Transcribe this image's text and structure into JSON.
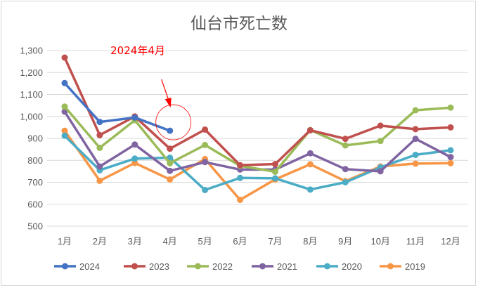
{
  "chart_data": {
    "type": "line",
    "title": "仙台市死亡数",
    "xlabel": "",
    "ylabel": "",
    "categories": [
      "1月",
      "2月",
      "3月",
      "4月",
      "5月",
      "6月",
      "7月",
      "8月",
      "9月",
      "10月",
      "11月",
      "12月"
    ],
    "ylim": [
      500,
      1300
    ],
    "yticks": [
      500,
      600,
      700,
      800,
      900,
      1000,
      1100,
      1200,
      1300
    ],
    "ytick_labels": [
      "500",
      "600",
      "700",
      "800",
      "900",
      "1,000",
      "1,100",
      "1,200",
      "1,300"
    ],
    "grid": true,
    "legend_position": "bottom",
    "series": [
      {
        "name": "2024",
        "color": "#4472c4",
        "values": [
          1152,
          975,
          995,
          935,
          null,
          null,
          null,
          null,
          null,
          null,
          null,
          null
        ]
      },
      {
        "name": "2023",
        "color": "#c0504d",
        "values": [
          1268,
          915,
          1000,
          853,
          940,
          778,
          783,
          937,
          898,
          958,
          942,
          950
        ]
      },
      {
        "name": "2022",
        "color": "#9bbb59",
        "values": [
          1045,
          857,
          983,
          787,
          870,
          775,
          748,
          938,
          868,
          888,
          1028,
          1040
        ]
      },
      {
        "name": "2021",
        "color": "#8064a2",
        "values": [
          1022,
          772,
          872,
          752,
          792,
          758,
          758,
          832,
          760,
          750,
          898,
          815
        ]
      },
      {
        "name": "2020",
        "color": "#4bacc6",
        "values": [
          912,
          755,
          808,
          812,
          665,
          720,
          718,
          667,
          700,
          768,
          825,
          846
        ]
      },
      {
        "name": "2019",
        "color": "#f79646",
        "values": [
          935,
          707,
          788,
          713,
          806,
          620,
          713,
          782,
          705,
          772,
          785,
          787
        ]
      }
    ],
    "annotation": {
      "text": "2024年4月",
      "color": "#ff0000",
      "target_category": "4月",
      "target_value": 935
    }
  }
}
